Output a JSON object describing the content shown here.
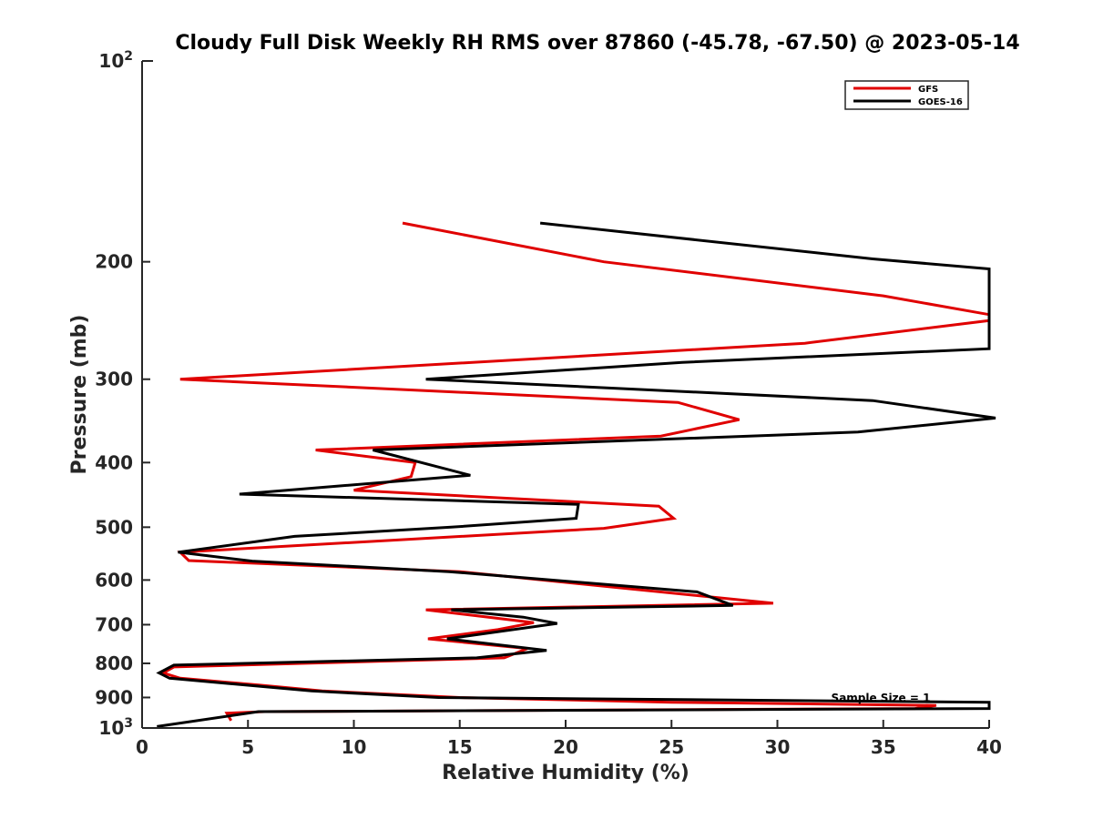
{
  "chart_data": {
    "type": "line",
    "title": "Cloudy Full Disk Weekly RH RMS over 87860 (-45.78, -67.50) @ 2023-05-14",
    "xlabel": "Relative Humidity (%)",
    "ylabel": "Pressure (mb)",
    "xlim": [
      0,
      40
    ],
    "ylim": [
      100,
      1000
    ],
    "y_scale": "log",
    "y_reversed": true,
    "grid": false,
    "legend_position": "top-right",
    "x_ticks": [
      0,
      5,
      10,
      15,
      20,
      25,
      30,
      35,
      40
    ],
    "x_tick_labels": [
      "0",
      "5",
      "10",
      "15",
      "20",
      "25",
      "30",
      "35",
      "40"
    ],
    "y_ticks": [
      200,
      300,
      400,
      500,
      600,
      700,
      800,
      900
    ],
    "y_tick_labels": [
      "200",
      "300",
      "400",
      "500",
      "600",
      "700",
      "800",
      "900"
    ],
    "y_top_label": {
      "base": "10",
      "exp": "2"
    },
    "y_bottom_label": {
      "base": "10",
      "exp": "3"
    },
    "annotation": "Sample Size = 1",
    "series": [
      {
        "name": "GFS",
        "color": "#e00000",
        "points": [
          [
            12.3,
            175
          ],
          [
            21.8,
            200
          ],
          [
            35.0,
            225
          ],
          [
            40.0,
            240
          ],
          [
            40.0,
            245
          ],
          [
            31.3,
            265
          ],
          [
            1.8,
            300
          ],
          [
            25.3,
            325
          ],
          [
            28.2,
            345
          ],
          [
            24.5,
            365
          ],
          [
            8.2,
            383
          ],
          [
            12.9,
            400
          ],
          [
            12.7,
            420
          ],
          [
            10.0,
            440
          ],
          [
            24.4,
            465
          ],
          [
            25.1,
            485
          ],
          [
            21.8,
            502
          ],
          [
            1.8,
            545
          ],
          [
            2.2,
            561
          ],
          [
            15.0,
            583
          ],
          [
            29.8,
            650
          ],
          [
            13.4,
            665
          ],
          [
            16.5,
            683
          ],
          [
            18.5,
            695
          ],
          [
            16.8,
            712
          ],
          [
            13.5,
            735
          ],
          [
            18.2,
            760
          ],
          [
            17.1,
            785
          ],
          [
            1.5,
            810
          ],
          [
            1.0,
            827
          ],
          [
            1.8,
            842
          ],
          [
            5.5,
            862
          ],
          [
            8.5,
            880
          ],
          [
            15.0,
            900
          ],
          [
            25.0,
            915
          ],
          [
            37.5,
            925
          ],
          [
            36.5,
            935
          ],
          [
            5.8,
            945
          ],
          [
            4.0,
            950
          ],
          [
            4.2,
            975
          ]
        ]
      },
      {
        "name": "GOES-16",
        "color": "#000000",
        "points": [
          [
            18.8,
            175
          ],
          [
            34.5,
            198
          ],
          [
            40.0,
            205
          ],
          [
            40.0,
            270
          ],
          [
            25.5,
            283
          ],
          [
            13.4,
            300
          ],
          [
            34.5,
            323
          ],
          [
            40.3,
            343
          ],
          [
            33.8,
            360
          ],
          [
            10.9,
            383
          ],
          [
            15.5,
            418
          ],
          [
            4.6,
            446
          ],
          [
            20.6,
            462
          ],
          [
            20.5,
            485
          ],
          [
            14.6,
            500
          ],
          [
            7.2,
            516
          ],
          [
            1.7,
            545
          ],
          [
            5.2,
            562
          ],
          [
            14.5,
            583
          ],
          [
            26.2,
            625
          ],
          [
            27.9,
            655
          ],
          [
            14.6,
            665
          ],
          [
            18.0,
            682
          ],
          [
            19.6,
            697
          ],
          [
            14.4,
            735
          ],
          [
            19.1,
            765
          ],
          [
            15.8,
            785
          ],
          [
            1.5,
            805
          ],
          [
            0.8,
            827
          ],
          [
            1.3,
            842
          ],
          [
            8.0,
            880
          ],
          [
            14.0,
            900
          ],
          [
            40.0,
            915
          ],
          [
            40.0,
            935
          ],
          [
            5.5,
            945
          ],
          [
            0.7,
            995
          ]
        ]
      }
    ]
  }
}
